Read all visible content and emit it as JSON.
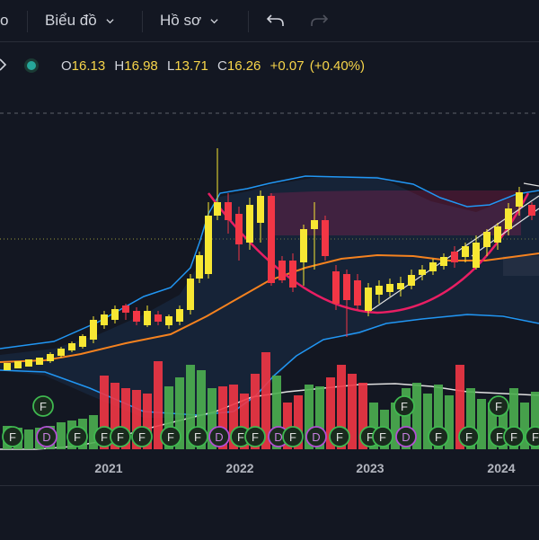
{
  "toolbar": {
    "partial_label": "o",
    "chart_menu": "Biểu đồ",
    "profile_menu": "Hồ sơ"
  },
  "legend": {
    "open_label": "O",
    "open": "16.13",
    "high_label": "H",
    "high": "16.98",
    "low_label": "L",
    "low": "13.71",
    "close_label": "C",
    "close": "16.26",
    "change": "+0.07",
    "change_pct": "(+0.40%)"
  },
  "axis": {
    "years": [
      "2021",
      "2022",
      "2023",
      "2024"
    ]
  },
  "markers": {
    "F": "F",
    "D": "D"
  },
  "colors": {
    "background": "#131722",
    "up": "#f7e733",
    "down": "#f23645",
    "vol_up": "#4caf50",
    "vol_down": "#f23645",
    "ma": "#f5821f",
    "band": "#2962ff",
    "cup": "#e91e63",
    "legend_value": "#f7d54a"
  }
}
